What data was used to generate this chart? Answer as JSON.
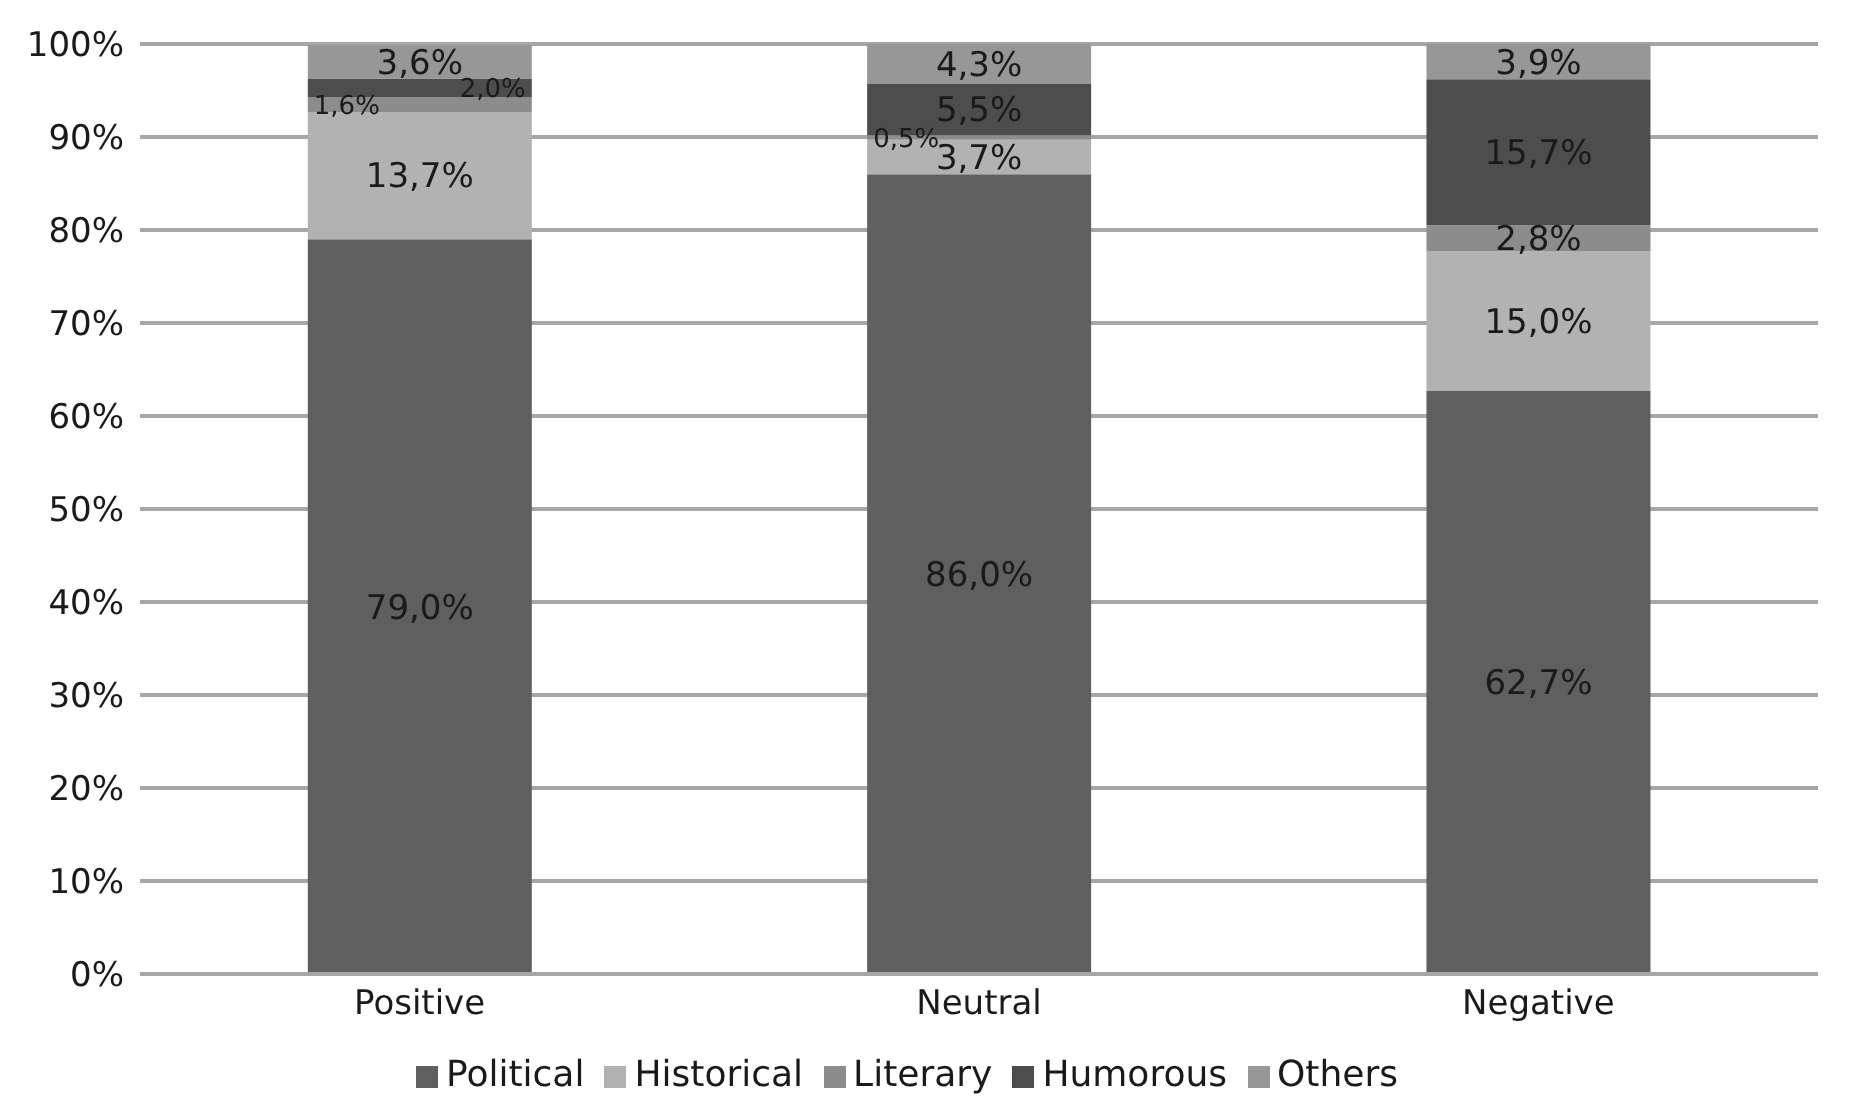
{
  "chart_data": {
    "type": "bar",
    "stacked": true,
    "categories": [
      "Positive",
      "Neutral",
      "Negative"
    ],
    "series": [
      {
        "name": "Political",
        "color": "#5f5f5f",
        "values": [
          79.0,
          86.0,
          62.7
        ],
        "value_labels": [
          "79,0%",
          "86,0%",
          "62,7%"
        ]
      },
      {
        "name": "Historical",
        "color": "#b2b2b2",
        "values": [
          13.7,
          3.7,
          15.0
        ],
        "value_labels": [
          "13,7%",
          "3,7%",
          "15,0%"
        ]
      },
      {
        "name": "Literary",
        "color": "#8c8c8c",
        "values": [
          1.6,
          0.5,
          2.8
        ],
        "value_labels": [
          "1,6%",
          "0,5%",
          "2,8%"
        ]
      },
      {
        "name": "Humorous",
        "color": "#4d4d4d",
        "values": [
          2.0,
          5.5,
          15.7
        ],
        "value_labels": [
          "2,0%",
          "5,5%",
          "15,7%"
        ]
      },
      {
        "name": "Others",
        "color": "#979797",
        "values": [
          3.6,
          4.3,
          3.9
        ],
        "value_labels": [
          "3,6%",
          "4,3%",
          "3,9%"
        ]
      }
    ],
    "ylim": [
      0,
      100
    ],
    "yticks": [
      {
        "value": 0,
        "label": "0%"
      },
      {
        "value": 10,
        "label": "10%"
      },
      {
        "value": 20,
        "label": "20%"
      },
      {
        "value": 30,
        "label": "30%"
      },
      {
        "value": 40,
        "label": "40%"
      },
      {
        "value": 50,
        "label": "50%"
      },
      {
        "value": 60,
        "label": "60%"
      },
      {
        "value": 70,
        "label": "70%"
      },
      {
        "value": 80,
        "label": "80%"
      },
      {
        "value": 90,
        "label": "90%"
      },
      {
        "value": 100,
        "label": "100%"
      }
    ],
    "grid": "y",
    "legend": "bottom"
  }
}
